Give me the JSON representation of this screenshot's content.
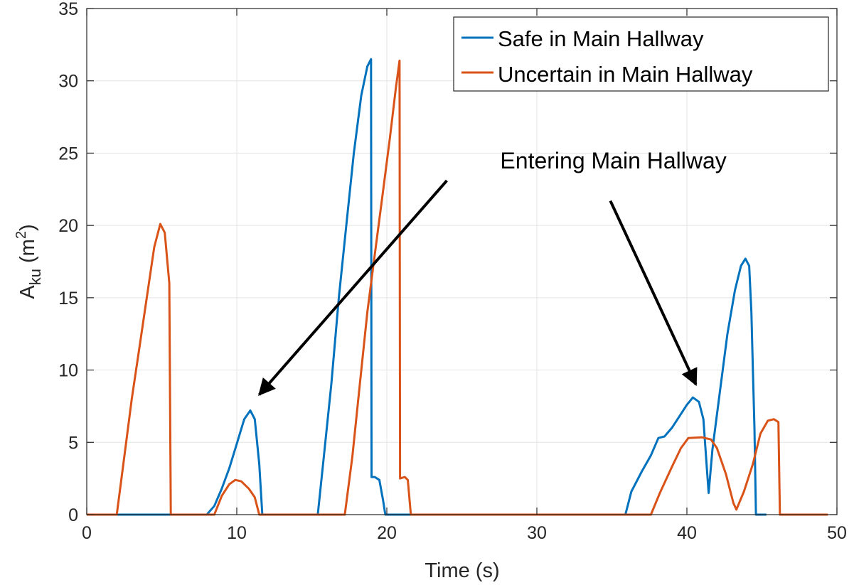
{
  "chart_data": {
    "type": "line",
    "title": "",
    "xlabel": "Time (s)",
    "ylabel": {
      "base": "A",
      "subscript": "ku",
      "unit_open": " (m",
      "unit_sup": "2",
      "unit_close": ")"
    },
    "xlim": [
      0,
      50
    ],
    "ylim": [
      0,
      35
    ],
    "xticks": [
      0,
      10,
      20,
      30,
      40,
      50
    ],
    "yticks": [
      0,
      5,
      10,
      15,
      20,
      25,
      30,
      35
    ],
    "grid": true,
    "legend_position": "top-right",
    "series": [
      {
        "name": "Safe in Main Hallway",
        "color": "#0072BD",
        "points": [
          [
            0,
            0
          ],
          [
            8.0,
            0
          ],
          [
            8.5,
            0.6
          ],
          [
            9.0,
            1.8
          ],
          [
            9.5,
            3.2
          ],
          [
            10.0,
            4.9
          ],
          [
            10.5,
            6.6
          ],
          [
            10.9,
            7.2
          ],
          [
            11.2,
            6.6
          ],
          [
            11.5,
            3.5
          ],
          [
            11.7,
            0
          ],
          [
            15.4,
            0
          ],
          [
            15.8,
            4
          ],
          [
            16.3,
            9
          ],
          [
            16.8,
            15
          ],
          [
            17.3,
            20
          ],
          [
            17.8,
            25
          ],
          [
            18.3,
            29
          ],
          [
            18.7,
            31
          ],
          [
            18.95,
            31.5
          ],
          [
            18.98,
            2.6
          ],
          [
            19.2,
            2.6
          ],
          [
            19.5,
            2.4
          ],
          [
            19.75,
            1.0
          ],
          [
            19.9,
            0
          ],
          [
            35.9,
            0
          ],
          [
            36.3,
            1.6
          ],
          [
            37.0,
            3.0
          ],
          [
            37.6,
            4.1
          ],
          [
            38.1,
            5.3
          ],
          [
            38.5,
            5.4
          ],
          [
            39.0,
            6.0
          ],
          [
            39.5,
            6.8
          ],
          [
            40.0,
            7.6
          ],
          [
            40.4,
            8.1
          ],
          [
            40.8,
            7.8
          ],
          [
            41.1,
            6.6
          ],
          [
            41.35,
            2.9
          ],
          [
            41.45,
            1.5
          ],
          [
            41.7,
            4.5
          ],
          [
            42.2,
            8.5
          ],
          [
            42.7,
            12.5
          ],
          [
            43.2,
            15.5
          ],
          [
            43.6,
            17.2
          ],
          [
            43.9,
            17.7
          ],
          [
            44.15,
            17.2
          ],
          [
            44.3,
            14
          ],
          [
            44.4,
            10
          ],
          [
            44.5,
            6
          ],
          [
            44.6,
            0
          ],
          [
            45.3,
            0
          ]
        ]
      },
      {
        "name": "Uncertain in Main Hallway",
        "color": "#D95319",
        "points": [
          [
            0,
            0
          ],
          [
            2.0,
            0
          ],
          [
            2.5,
            4
          ],
          [
            3.0,
            8
          ],
          [
            3.5,
            11.5
          ],
          [
            4.0,
            15
          ],
          [
            4.5,
            18.5
          ],
          [
            4.9,
            20.1
          ],
          [
            5.2,
            19.5
          ],
          [
            5.5,
            16
          ],
          [
            5.6,
            0
          ],
          [
            8.5,
            0
          ],
          [
            9.0,
            1.3
          ],
          [
            9.5,
            2.1
          ],
          [
            9.9,
            2.4
          ],
          [
            10.3,
            2.3
          ],
          [
            10.8,
            1.8
          ],
          [
            11.2,
            1.2
          ],
          [
            11.5,
            0
          ],
          [
            17.2,
            0
          ],
          [
            17.7,
            4
          ],
          [
            18.2,
            9
          ],
          [
            18.7,
            14
          ],
          [
            19.2,
            18
          ],
          [
            19.7,
            22
          ],
          [
            20.2,
            26
          ],
          [
            20.6,
            29.5
          ],
          [
            20.85,
            31.4
          ],
          [
            20.88,
            2.5
          ],
          [
            21.2,
            2.6
          ],
          [
            21.4,
            2.4
          ],
          [
            21.6,
            0
          ],
          [
            37.6,
            0
          ],
          [
            38.2,
            1.5
          ],
          [
            39.0,
            3.3
          ],
          [
            39.6,
            4.6
          ],
          [
            40.1,
            5.3
          ],
          [
            41.0,
            5.35
          ],
          [
            41.6,
            5.2
          ],
          [
            42.0,
            4.6
          ],
          [
            42.6,
            2.8
          ],
          [
            43.1,
            0.8
          ],
          [
            43.3,
            0.35
          ],
          [
            43.8,
            1.6
          ],
          [
            44.4,
            3.5
          ],
          [
            44.9,
            5.6
          ],
          [
            45.4,
            6.5
          ],
          [
            45.8,
            6.6
          ],
          [
            46.1,
            6.4
          ],
          [
            46.2,
            0
          ],
          [
            49.4,
            0
          ]
        ]
      }
    ],
    "annotations": [
      {
        "text": "Entering Main Hallway",
        "x": 35.1,
        "y": 23.95
      },
      {
        "arrow_from": [
          24.0,
          23.1
        ],
        "arrow_to": [
          11.5,
          8.3
        ]
      },
      {
        "arrow_from": [
          34.9,
          21.7
        ],
        "arrow_to": [
          40.6,
          9.0
        ]
      }
    ]
  }
}
